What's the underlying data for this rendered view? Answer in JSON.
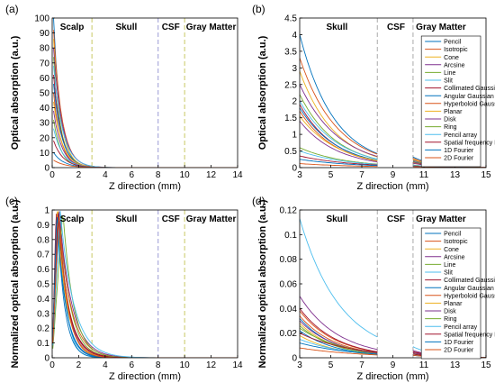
{
  "figure": {
    "background": "#ffffff"
  },
  "legend_series": [
    "Pencil",
    "Isotropic",
    "Cone",
    "Arcsine",
    "Line",
    "Slit",
    "Collimated Gaussian",
    "Angular Gaussian",
    "Hyperboloid Gaussian",
    "Planar",
    "Disk",
    "Ring",
    "Pencil array",
    "Spatial frequency Fourier",
    "1D Fourier",
    "2D Fourier"
  ],
  "series_colors": [
    "#0072bd",
    "#d95319",
    "#edb120",
    "#7e2f8e",
    "#77ac30",
    "#4dbeee",
    "#a2142f",
    "#0072bd",
    "#d95319",
    "#edb120",
    "#7e2f8e",
    "#77ac30",
    "#4dbeee",
    "#a2142f",
    "#0072bd",
    "#d95319"
  ],
  "chart_data": [
    {
      "panel": "(a)",
      "type": "line",
      "xlabel": "Z direction (mm)",
      "ylabel": "Optical absorption (a.u.)",
      "xlim": [
        0,
        14
      ],
      "ylim": [
        0,
        100
      ],
      "xticks": [
        "0",
        "2",
        "4",
        "6",
        "8",
        "10",
        "12",
        "14"
      ],
      "yticks": [
        "0",
        "10",
        "20",
        "30",
        "40",
        "50",
        "60",
        "70",
        "80",
        "90",
        "100"
      ],
      "region_labels": [
        {
          "text": "Scalp",
          "x": 1.5
        },
        {
          "text": "Skull",
          "x": 5.6
        },
        {
          "text": "CSF",
          "x": 8.95
        },
        {
          "text": "Gray Matter",
          "x": 12.0
        }
      ],
      "boundaries": [
        {
          "x": 3,
          "color": "#c8c864"
        },
        {
          "x": 8,
          "color": "#9b9bd6"
        },
        {
          "x": 10,
          "color": "#c8c864"
        }
      ],
      "model": "exp",
      "x_start": 0.1,
      "x_end": 14,
      "series": [
        {
          "name": "Pencil",
          "start": 100,
          "decay": 1.2
        },
        {
          "name": "Isotropic",
          "start": 92,
          "decay": 1.0
        },
        {
          "name": "Cone",
          "start": 86,
          "decay": 1.1
        },
        {
          "name": "Arcsine",
          "start": 80,
          "decay": 0.95
        },
        {
          "name": "Line",
          "start": 74,
          "decay": 1.15
        },
        {
          "name": "Slit",
          "start": 68,
          "decay": 0.9
        },
        {
          "name": "Collimated Gaussian",
          "start": 62,
          "decay": 1.05
        },
        {
          "name": "Angular Gaussian",
          "start": 56,
          "decay": 1.0
        },
        {
          "name": "Hyperboloid Gaussian",
          "start": 50,
          "decay": 1.1
        },
        {
          "name": "Planar",
          "start": 44,
          "decay": 0.95
        },
        {
          "name": "Disk",
          "start": 38,
          "decay": 1.0
        },
        {
          "name": "Ring",
          "start": 32,
          "decay": 1.1
        },
        {
          "name": "Pencil array",
          "start": 26,
          "decay": 0.9
        },
        {
          "name": "Spatial frequency Fourier",
          "start": 18,
          "decay": 0.85
        },
        {
          "name": "1D Fourier",
          "start": 10,
          "decay": 0.8
        },
        {
          "name": "2D Fourier",
          "start": 5,
          "decay": 0.7
        }
      ]
    },
    {
      "panel": "(b)",
      "type": "line",
      "xlabel": "Z direction (mm)",
      "ylabel": "Optical absorption (a.u.)",
      "xlim": [
        3,
        15
      ],
      "ylim": [
        0,
        4.5
      ],
      "xticks": [
        "3",
        "5",
        "7",
        "9",
        "11",
        "13",
        "15"
      ],
      "yticks": [
        "0",
        "0.5",
        "1",
        "1.5",
        "2",
        "2.5",
        "3",
        "3.5",
        "4",
        "4.5"
      ],
      "region_labels": [
        {
          "text": "Skull",
          "x": 5.4
        },
        {
          "text": "CSF",
          "x": 9.2
        },
        {
          "text": "Gray Matter",
          "x": 12.1
        }
      ],
      "boundaries": [
        {
          "x": 8,
          "color": "#aaaaaa"
        },
        {
          "x": 10.3,
          "color": "#aaaaaa"
        }
      ],
      "model": "segments",
      "segments": [
        [
          3,
          8
        ],
        [
          10.3,
          15
        ]
      ],
      "legend": "Pencil, Isotropic, Cone, Arcsine, Line, Slit, Collimated Gaussian, Angular Gaussian, Hyperboloid Gaussian, Planar, Disk, Ring, Pencil array, Spatial frequency Fourier, 1D Fourier, 2D Fourier",
      "series": [
        {
          "name": "Pencil",
          "start": 4.0,
          "decay": 0.45,
          "gm": 0.32
        },
        {
          "name": "Isotropic",
          "start": 3.3,
          "decay": 0.42,
          "gm": 0.28
        },
        {
          "name": "Cone",
          "start": 2.9,
          "decay": 0.44,
          "gm": 0.25
        },
        {
          "name": "Arcsine",
          "start": 2.5,
          "decay": 0.4,
          "gm": 0.22
        },
        {
          "name": "Line",
          "start": 2.2,
          "decay": 0.43,
          "gm": 0.2
        },
        {
          "name": "Slit",
          "start": 2.0,
          "decay": 0.41,
          "gm": 0.18
        },
        {
          "name": "Collimated Gaussian",
          "start": 1.9,
          "decay": 0.44,
          "gm": 0.17
        },
        {
          "name": "Angular Gaussian",
          "start": 1.8,
          "decay": 0.42,
          "gm": 0.16
        },
        {
          "name": "Hyperboloid Gaussian",
          "start": 1.7,
          "decay": 0.43,
          "gm": 0.15
        },
        {
          "name": "Planar",
          "start": 1.55,
          "decay": 0.4,
          "gm": 0.14
        },
        {
          "name": "Disk",
          "start": 1.4,
          "decay": 0.42,
          "gm": 0.13
        },
        {
          "name": "Ring",
          "start": 0.6,
          "decay": 0.35,
          "gm": 0.08
        },
        {
          "name": "Pencil array",
          "start": 0.5,
          "decay": 0.33,
          "gm": 0.07
        },
        {
          "name": "Spatial frequency Fourier",
          "start": 0.35,
          "decay": 0.3,
          "gm": 0.05
        },
        {
          "name": "1D Fourier",
          "start": 0.25,
          "decay": 0.28,
          "gm": 0.04
        },
        {
          "name": "2D Fourier",
          "start": 0.12,
          "decay": 0.25,
          "gm": 0.03
        }
      ]
    },
    {
      "panel": "(c)",
      "type": "line",
      "xlabel": "Z direction (mm)",
      "ylabel": "Normalized optical absorption (a.u.)",
      "xlim": [
        0,
        14
      ],
      "ylim": [
        0,
        1
      ],
      "xticks": [
        "0",
        "2",
        "4",
        "6",
        "8",
        "10",
        "12",
        "14"
      ],
      "yticks": [
        "0",
        "0.1",
        "0.2",
        "0.3",
        "0.4",
        "0.5",
        "0.6",
        "0.7",
        "0.8",
        "0.9",
        "1"
      ],
      "region_labels": [
        {
          "text": "Scalp",
          "x": 1.5
        },
        {
          "text": "Skull",
          "x": 5.6
        },
        {
          "text": "CSF",
          "x": 8.95
        },
        {
          "text": "Gray Matter",
          "x": 12.0
        }
      ],
      "boundaries": [
        {
          "x": 3,
          "color": "#c8c864"
        },
        {
          "x": 8,
          "color": "#9b9bd6"
        },
        {
          "x": 10,
          "color": "#c8c864"
        }
      ],
      "model": "peak",
      "x_start": 0.05,
      "x_end": 14,
      "series": [
        {
          "name": "Pencil",
          "peak": 0.35,
          "decay": 1.1
        },
        {
          "name": "Isotropic",
          "peak": 0.4,
          "decay": 1.0
        },
        {
          "name": "Cone",
          "peak": 0.45,
          "decay": 0.95
        },
        {
          "name": "Arcsine",
          "peak": 0.5,
          "decay": 1.05
        },
        {
          "name": "Line",
          "peak": 0.55,
          "decay": 0.9
        },
        {
          "name": "Slit",
          "peak": 0.6,
          "decay": 1.5
        },
        {
          "name": "Collimated Gaussian",
          "peak": 0.3,
          "decay": 0.85
        },
        {
          "name": "Angular Gaussian",
          "peak": 0.42,
          "decay": 1.2
        },
        {
          "name": "Hyperboloid Gaussian",
          "peak": 0.48,
          "decay": 0.8
        },
        {
          "name": "Planar",
          "peak": 0.38,
          "decay": 1.0
        },
        {
          "name": "Disk",
          "peak": 0.52,
          "decay": 0.75
        },
        {
          "name": "Ring",
          "peak": 0.8,
          "decay": 0.9
        },
        {
          "name": "Pencil array",
          "peak": 0.6,
          "decay": 0.7
        },
        {
          "name": "Spatial frequency Fourier",
          "peak": 0.44,
          "decay": 0.95
        },
        {
          "name": "1D Fourier",
          "peak": 0.36,
          "decay": 1.3
        },
        {
          "name": "2D Fourier",
          "peak": 0.5,
          "decay": 1.1
        }
      ]
    },
    {
      "panel": "(d)",
      "type": "line",
      "xlabel": "Z direction (mm)",
      "ylabel": "Normalized optical absorption (a.u.)",
      "xlim": [
        3,
        15
      ],
      "ylim": [
        0,
        0.12
      ],
      "xticks": [
        "3",
        "5",
        "7",
        "9",
        "11",
        "13",
        "15"
      ],
      "yticks": [
        "0",
        "0.02",
        "0.04",
        "0.06",
        "0.08",
        "0.1",
        "0.12"
      ],
      "region_labels": [
        {
          "text": "Skull",
          "x": 5.4
        },
        {
          "text": "CSF",
          "x": 9.2
        },
        {
          "text": "Gray Matter",
          "x": 12.1
        }
      ],
      "boundaries": [
        {
          "x": 8,
          "color": "#aaaaaa"
        },
        {
          "x": 10.3,
          "color": "#aaaaaa"
        }
      ],
      "model": "segments",
      "segments": [
        [
          3,
          8
        ],
        [
          10.3,
          15
        ]
      ],
      "series": [
        {
          "name": "Pencil",
          "start": 0.032,
          "decay": 0.45,
          "gm": 0.004
        },
        {
          "name": "Isotropic",
          "start": 0.038,
          "decay": 0.42,
          "gm": 0.005
        },
        {
          "name": "Cone",
          "start": 0.028,
          "decay": 0.44,
          "gm": 0.004
        },
        {
          "name": "Arcsine",
          "start": 0.05,
          "decay": 0.4,
          "gm": 0.006
        },
        {
          "name": "Line",
          "start": 0.026,
          "decay": 0.43,
          "gm": 0.004
        },
        {
          "name": "Slit",
          "start": 0.113,
          "decay": 0.38,
          "gm": 0.009
        },
        {
          "name": "Collimated Gaussian",
          "start": 0.04,
          "decay": 0.42,
          "gm": 0.005
        },
        {
          "name": "Angular Gaussian",
          "start": 0.022,
          "decay": 0.42,
          "gm": 0.003
        },
        {
          "name": "Hyperboloid Gaussian",
          "start": 0.034,
          "decay": 0.43,
          "gm": 0.004
        },
        {
          "name": "Planar",
          "start": 0.018,
          "decay": 0.4,
          "gm": 0.003
        },
        {
          "name": "Disk",
          "start": 0.03,
          "decay": 0.42,
          "gm": 0.004
        },
        {
          "name": "Ring",
          "start": 0.024,
          "decay": 0.35,
          "gm": 0.003
        },
        {
          "name": "Pencil array",
          "start": 0.015,
          "decay": 0.33,
          "gm": 0.002
        },
        {
          "name": "Spatial frequency Fourier",
          "start": 0.02,
          "decay": 0.3,
          "gm": 0.003
        },
        {
          "name": "1D Fourier",
          "start": 0.012,
          "decay": 0.28,
          "gm": 0.002
        },
        {
          "name": "2D Fourier",
          "start": 0.008,
          "decay": 0.25,
          "gm": 0.002
        }
      ]
    }
  ]
}
